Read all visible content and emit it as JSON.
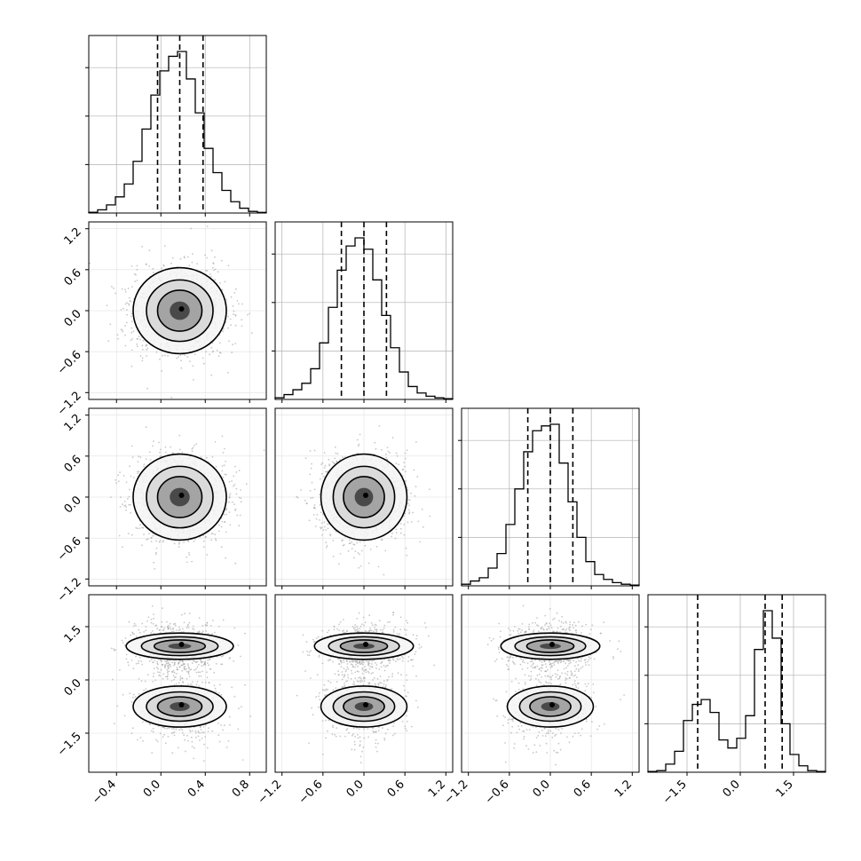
{
  "chart_data": {
    "type": "corner",
    "title": "",
    "ndim": 4,
    "grid": true,
    "style": {
      "hist_color": "#000000",
      "contour_color": "#000000",
      "point_color": "#9a9a9a",
      "grid_color": "#b0b0b0",
      "quantile_line": "dashed"
    },
    "params": [
      {
        "range": [
          -0.65,
          0.95
        ],
        "ticks": [
          "−0.4",
          "0.0",
          "0.4",
          "0.8"
        ],
        "tick_values": [
          -0.4,
          0.0,
          0.4,
          0.8
        ],
        "quantiles": [
          -0.03,
          0.17,
          0.38
        ],
        "hist": {
          "edges_start": -0.65,
          "bin_width": 0.08,
          "counts": [
            0.005,
            0.02,
            0.05,
            0.1,
            0.18,
            0.32,
            0.52,
            0.73,
            0.88,
            0.97,
            1.0,
            0.83,
            0.62,
            0.4,
            0.25,
            0.14,
            0.07,
            0.03,
            0.01,
            0.004
          ]
        }
      },
      {
        "range": [
          -1.3,
          1.3
        ],
        "ticks": [
          "−1.2",
          "−0.6",
          "0.0",
          "0.6",
          "1.2"
        ],
        "tick_values": [
          -1.2,
          -0.6,
          0.0,
          0.6,
          1.2
        ],
        "quantiles": [
          -0.33,
          0.0,
          0.33
        ],
        "hist": {
          "edges_start": -1.3,
          "bin_width": 0.13,
          "counts": [
            0.01,
            0.03,
            0.06,
            0.1,
            0.19,
            0.35,
            0.57,
            0.8,
            0.95,
            1.0,
            0.93,
            0.74,
            0.52,
            0.32,
            0.17,
            0.08,
            0.04,
            0.02,
            0.01,
            0.005
          ]
        }
      },
      {
        "range": [
          -1.3,
          1.3
        ],
        "ticks": [
          "−1.2",
          "−0.6",
          "0.0",
          "0.6",
          "1.2"
        ],
        "tick_values": [
          -1.2,
          -0.6,
          0.0,
          0.6,
          1.2
        ],
        "quantiles": [
          -0.33,
          0.0,
          0.33
        ],
        "hist": {
          "edges_start": -1.3,
          "bin_width": 0.13,
          "counts": [
            0.01,
            0.03,
            0.05,
            0.11,
            0.2,
            0.38,
            0.6,
            0.83,
            0.96,
            0.99,
            1.0,
            0.76,
            0.52,
            0.3,
            0.15,
            0.07,
            0.04,
            0.02,
            0.01,
            0.005
          ]
        }
      },
      {
        "range": [
          -2.6,
          2.4
        ],
        "ticks": [
          "−1.5",
          "0.0",
          "1.5"
        ],
        "tick_values": [
          -1.5,
          0.0,
          1.5
        ],
        "quantiles": [
          -1.2,
          0.7,
          1.18
        ],
        "hist": {
          "edges_start": -2.6,
          "bin_width": 0.25,
          "counts": [
            0.005,
            0.01,
            0.05,
            0.13,
            0.32,
            0.42,
            0.45,
            0.37,
            0.2,
            0.15,
            0.21,
            0.35,
            0.76,
            1.0,
            0.83,
            0.3,
            0.11,
            0.04,
            0.01,
            0.005
          ]
        }
      }
    ],
    "pairs": [
      {
        "x": 0,
        "y": 1,
        "peaks": [
          {
            "mx": 0.17,
            "my": 0.0,
            "sx": 0.2,
            "sy": 0.3,
            "w": 1.0
          }
        ]
      },
      {
        "x": 0,
        "y": 2,
        "peaks": [
          {
            "mx": 0.17,
            "my": 0.0,
            "sx": 0.2,
            "sy": 0.3,
            "w": 1.0
          }
        ]
      },
      {
        "x": 1,
        "y": 2,
        "peaks": [
          {
            "mx": 0.0,
            "my": 0.0,
            "sx": 0.3,
            "sy": 0.3,
            "w": 1.0
          }
        ]
      },
      {
        "x": 0,
        "y": 3,
        "peaks": [
          {
            "mx": 0.17,
            "my": 0.95,
            "sx": 0.2,
            "sy": 0.32,
            "w": 0.6
          },
          {
            "mx": 0.17,
            "my": -0.75,
            "sx": 0.2,
            "sy": 0.5,
            "w": 0.4
          }
        ]
      },
      {
        "x": 1,
        "y": 3,
        "peaks": [
          {
            "mx": 0.0,
            "my": 0.95,
            "sx": 0.3,
            "sy": 0.32,
            "w": 0.6
          },
          {
            "mx": 0.0,
            "my": -0.75,
            "sx": 0.3,
            "sy": 0.5,
            "w": 0.4
          }
        ]
      },
      {
        "x": 2,
        "y": 3,
        "peaks": [
          {
            "mx": 0.0,
            "my": 0.95,
            "sx": 0.3,
            "sy": 0.32,
            "w": 0.6
          },
          {
            "mx": 0.0,
            "my": -0.75,
            "sx": 0.3,
            "sy": 0.5,
            "w": 0.4
          }
        ]
      }
    ]
  }
}
